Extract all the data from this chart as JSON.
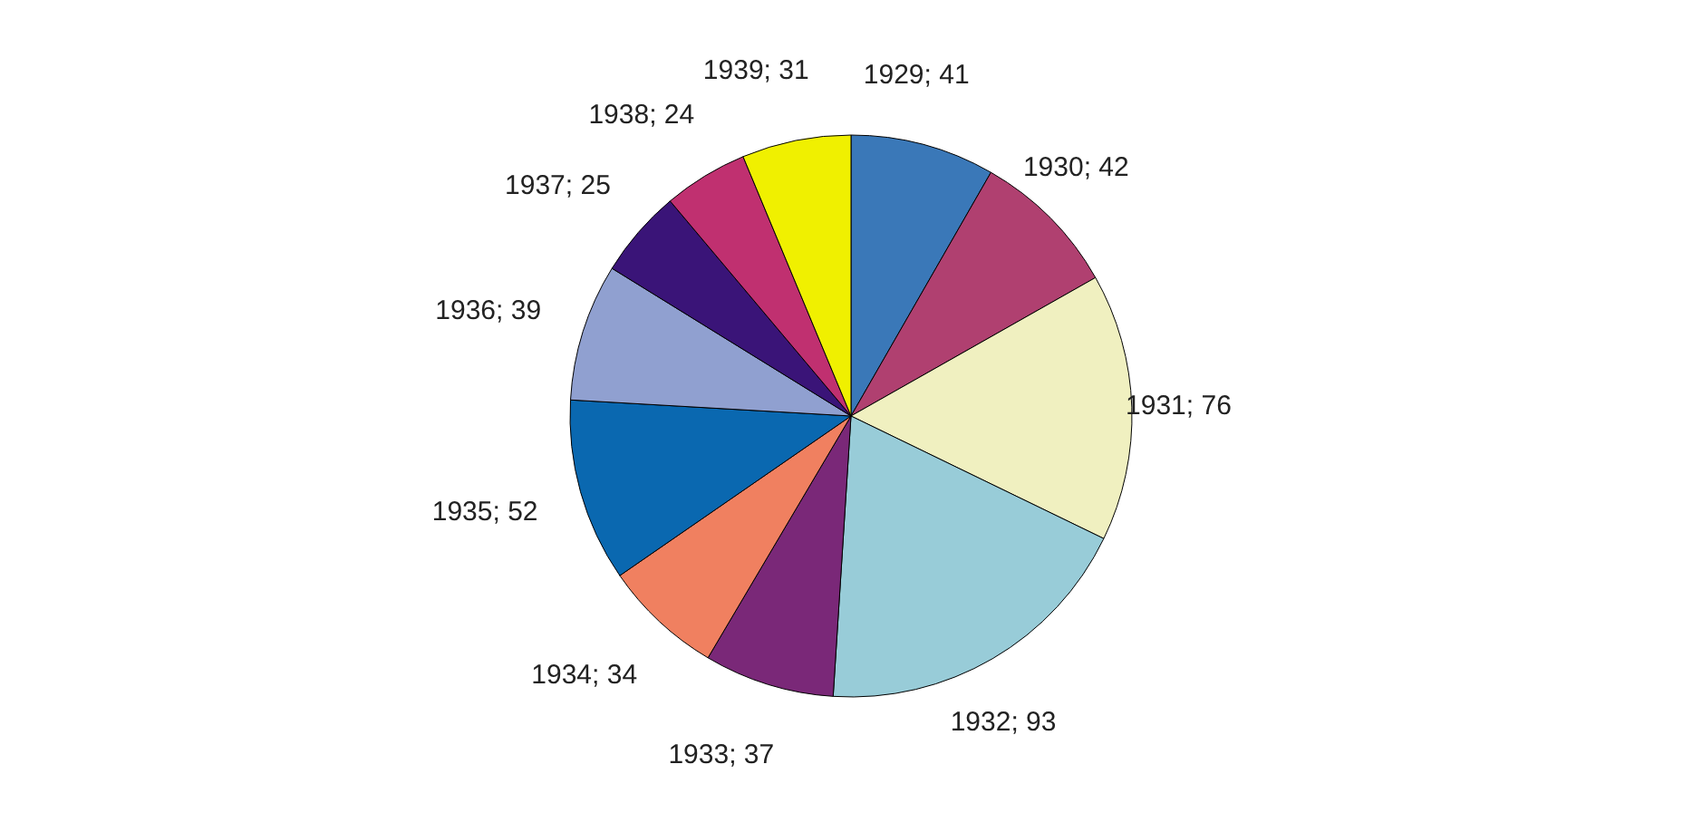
{
  "chart_data": {
    "type": "pie",
    "categories": [
      "1929",
      "1930",
      "1931",
      "1932",
      "1933",
      "1934",
      "1935",
      "1936",
      "1937",
      "1938",
      "1939"
    ],
    "values": [
      41,
      42,
      76,
      93,
      37,
      34,
      52,
      39,
      25,
      24,
      31
    ],
    "value_labels": [
      "; 41",
      "; 42",
      "; 76",
      "; 93",
      "; 37",
      "; 34",
      "; 52",
      "; 39",
      "; 25",
      "; 24",
      "; 31"
    ],
    "colors": [
      "#3a78b8",
      "#b04070",
      "#f0f0c0",
      "#98ccd8",
      "#7a2878",
      "#f08060",
      "#0a68b0",
      "#90a0d0",
      "#3a1478",
      "#c03070",
      "#f0f000"
    ],
    "legend": false
  }
}
